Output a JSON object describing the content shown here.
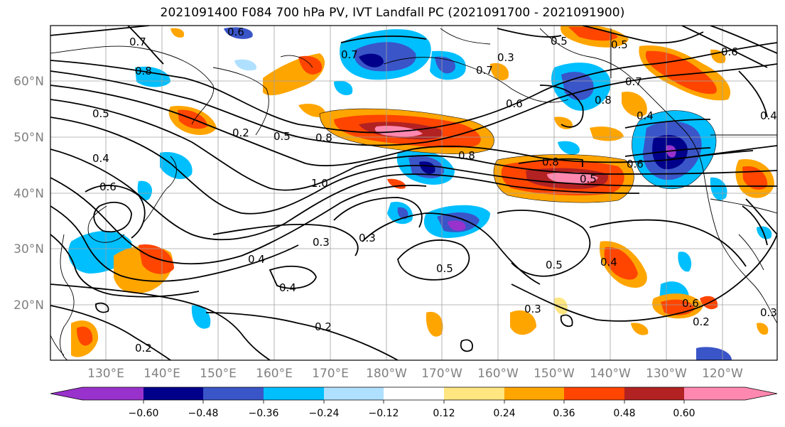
{
  "title": "2021091400 F084 700 hPa PV, IVT Landfall PC (2021091700 - 2021091900)",
  "map": {
    "lat_labels": [
      "60°N",
      "50°N",
      "40°N",
      "30°N",
      "20°N"
    ],
    "lon_labels": [
      "130°E",
      "140°E",
      "150°E",
      "160°E",
      "170°E",
      "180°W",
      "170°W",
      "160°W",
      "150°W",
      "140°W",
      "130°W",
      "120°W"
    ]
  },
  "contour_labels": [
    "0.7",
    "0.6",
    "0.8",
    "0.5",
    "0.4",
    "0.6",
    "0.2",
    "0.7",
    "0.7",
    "0.3",
    "0.5",
    "0.5",
    "0.6",
    "0.8",
    "0.6",
    "0.7",
    "0.4",
    "0.8",
    "0.5",
    "0.8",
    "0.8",
    "0.5",
    "0.6",
    "1.0",
    "0.3",
    "0.3",
    "0.4",
    "0.5",
    "0.5",
    "0.4",
    "0.4",
    "0.2",
    "0.2",
    "0.3",
    "0.6",
    "0.2",
    "0.4",
    "0.3"
  ],
  "colorbar": {
    "tick_labels": [
      "−0.60",
      "−0.48",
      "−0.36",
      "−0.24",
      "−0.12",
      "0.12",
      "0.24",
      "0.36",
      "0.48",
      "0.60"
    ],
    "colors": [
      "#9932cc",
      "#00008b",
      "#3a55c8",
      "#00bfff",
      "#b0e0ff",
      "#ffffff",
      "#ffe680",
      "#ffa500",
      "#ff4500",
      "#b22222",
      "#ff88b0"
    ]
  }
}
